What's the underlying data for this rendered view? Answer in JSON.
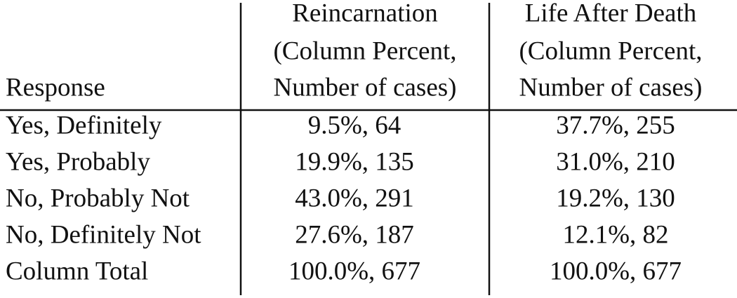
{
  "table": {
    "header": [
      [
        "Response"
      ],
      [
        "Reincarnation",
        "(Column Percent,",
        "Number of cases)"
      ],
      [
        "Life After Death",
        "(Column Percent,",
        "Number of cases)"
      ]
    ],
    "rows": [
      [
        "Yes, Definitely",
        "9.5%, 64",
        "37.7%, 255"
      ],
      [
        "Yes, Probably",
        "19.9%, 135",
        "31.0%, 210"
      ],
      [
        "No, Probably Not",
        "43.0%, 291",
        "19.2%, 130"
      ],
      [
        "No, Definitely Not",
        "27.6%, 187",
        "12.1%, 82"
      ],
      [
        "Column Total",
        "100.0%, 677",
        "100.0%, 677"
      ]
    ]
  }
}
